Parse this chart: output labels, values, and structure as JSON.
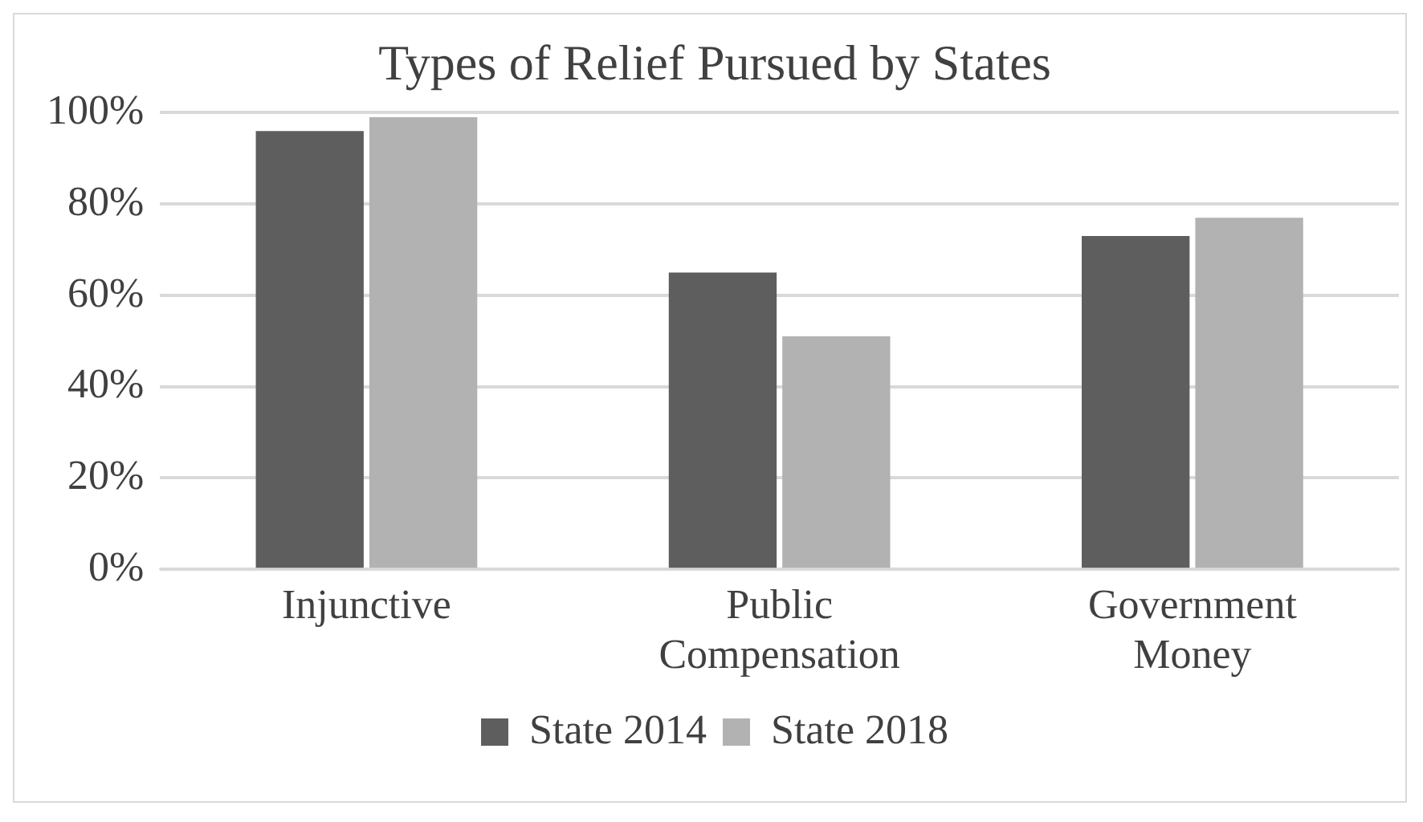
{
  "chart_data": {
    "type": "bar",
    "title": "Types of Relief Pursued by States",
    "categories": [
      "Injunctive",
      "Public Compensation",
      "Government Money"
    ],
    "series": [
      {
        "name": "State 2014",
        "color": "#5e5e5e",
        "values": [
          96,
          65,
          73
        ]
      },
      {
        "name": "State 2018",
        "color": "#b2b2b2",
        "values": [
          99,
          51,
          77
        ]
      }
    ],
    "ylim": [
      0,
      100
    ],
    "yticks": [
      {
        "value": 0,
        "label": "0%"
      },
      {
        "value": 20,
        "label": "20%"
      },
      {
        "value": 40,
        "label": "40%"
      },
      {
        "value": 60,
        "label": "60%"
      },
      {
        "value": 80,
        "label": "80%"
      },
      {
        "value": 100,
        "label": "100%"
      }
    ],
    "grid": "y",
    "legend": "bottom"
  }
}
